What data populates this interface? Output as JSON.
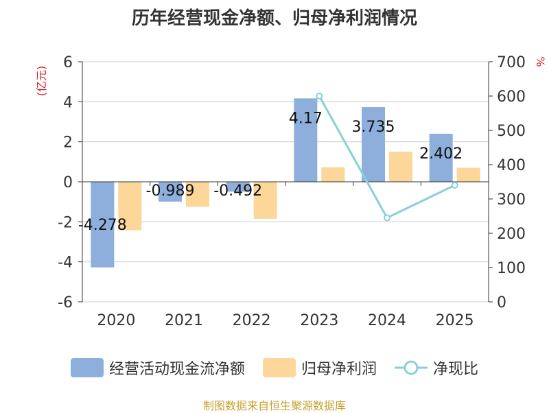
{
  "title": "历年经营现金净额、归母净利润情况",
  "source": "制图数据来自恒生聚源数据库",
  "chart_data": {
    "type": "bar",
    "categories": [
      "2020",
      "2021",
      "2022",
      "2023",
      "2024",
      "2025"
    ],
    "series": [
      {
        "name": "经营活动现金流净额",
        "axis": "left",
        "color": "#8eaedb",
        "values": [
          -4.278,
          -0.989,
          -0.492,
          4.17,
          3.735,
          2.402
        ],
        "labels": [
          "-4.278",
          "-0.989",
          "-0.492",
          "4.17",
          "3.735",
          "2.402"
        ]
      },
      {
        "name": "归母净利润",
        "axis": "left",
        "color": "#fdd699",
        "values": [
          -2.42,
          -1.25,
          -1.85,
          0.72,
          1.5,
          0.7
        ]
      },
      {
        "name": "净现比",
        "axis": "right",
        "type": "line",
        "color": "#88d0d8",
        "values": [
          null,
          null,
          null,
          600,
          245,
          340
        ]
      }
    ],
    "left_axis": {
      "unit": "(亿元)",
      "min": -6,
      "max": 6,
      "ticks": [
        6,
        4,
        2,
        0,
        -2,
        -4,
        -6
      ]
    },
    "right_axis": {
      "unit": "%",
      "min": 0,
      "max": 700,
      "ticks": [
        700,
        600,
        500,
        400,
        300,
        200,
        100,
        0
      ]
    },
    "grid": true,
    "legend_position": "bottom"
  }
}
